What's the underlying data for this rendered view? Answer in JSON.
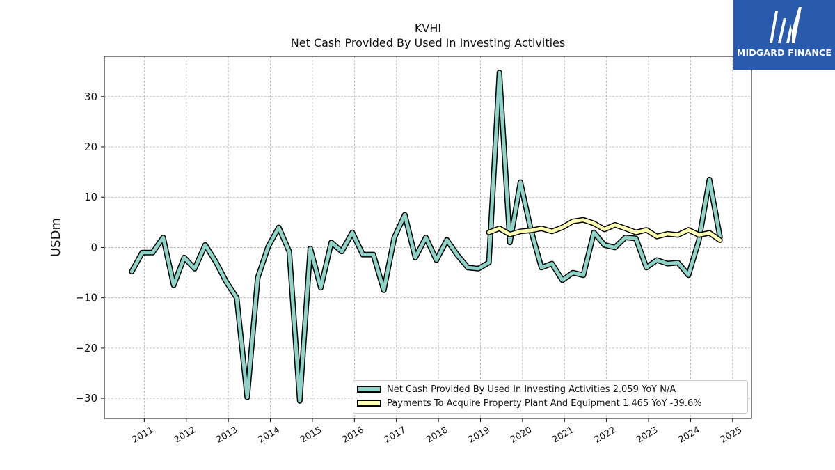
{
  "logo": {
    "text": "MIDGARD FINANCE",
    "icon": "midgard-logo-icon",
    "background": "#2a5aab"
  },
  "chart_data": {
    "type": "line",
    "title": "KVHI",
    "subtitle": "Net Cash Provided By Used In Investing Activities",
    "xlabel": "",
    "ylabel": "USDm",
    "xlim": [
      2010.05,
      2025.45
    ],
    "ylim": [
      -34,
      38
    ],
    "x_ticks": [
      "2011",
      "2012",
      "2013",
      "2014",
      "2015",
      "2016",
      "2017",
      "2018",
      "2019",
      "2020",
      "2021",
      "2022",
      "2023",
      "2024",
      "2025"
    ],
    "y_ticks": [
      -30,
      -20,
      -10,
      0,
      10,
      20,
      30
    ],
    "grid": true,
    "legend_position": "lower-right",
    "series": [
      {
        "name": "Net Cash Provided By Used In Investing Activities  2.059 YoY N/A",
        "color": "#8dd3c7",
        "points": [
          [
            2010.7,
            -4.8
          ],
          [
            2010.95,
            -1.0
          ],
          [
            2011.2,
            -1.0
          ],
          [
            2011.45,
            2.0
          ],
          [
            2011.7,
            -7.5
          ],
          [
            2011.95,
            -2.0
          ],
          [
            2012.2,
            -4.2
          ],
          [
            2012.45,
            0.5
          ],
          [
            2012.7,
            -2.8
          ],
          [
            2012.95,
            -6.8
          ],
          [
            2013.2,
            -10.0
          ],
          [
            2013.45,
            -29.8
          ],
          [
            2013.7,
            -6.0
          ],
          [
            2013.95,
            0.2
          ],
          [
            2014.2,
            4.0
          ],
          [
            2014.45,
            -0.8
          ],
          [
            2014.7,
            -30.5
          ],
          [
            2014.95,
            -0.2
          ],
          [
            2015.2,
            -8.0
          ],
          [
            2015.45,
            1.0
          ],
          [
            2015.7,
            -0.8
          ],
          [
            2015.95,
            3.0
          ],
          [
            2016.2,
            -1.4
          ],
          [
            2016.45,
            -1.4
          ],
          [
            2016.7,
            -8.5
          ],
          [
            2016.95,
            2.0
          ],
          [
            2017.2,
            6.5
          ],
          [
            2017.45,
            -2.0
          ],
          [
            2017.7,
            2.0
          ],
          [
            2017.95,
            -2.5
          ],
          [
            2018.2,
            1.5
          ],
          [
            2018.45,
            -1.5
          ],
          [
            2018.7,
            -4.0
          ],
          [
            2018.95,
            -4.2
          ],
          [
            2019.2,
            -3.0
          ],
          [
            2019.45,
            34.8
          ],
          [
            2019.7,
            1.0
          ],
          [
            2019.95,
            13.0
          ],
          [
            2020.2,
            3.5
          ],
          [
            2020.45,
            -4.0
          ],
          [
            2020.7,
            -3.2
          ],
          [
            2020.95,
            -6.5
          ],
          [
            2021.2,
            -5.0
          ],
          [
            2021.45,
            -5.5
          ],
          [
            2021.7,
            3.0
          ],
          [
            2021.95,
            0.5
          ],
          [
            2022.2,
            0.0
          ],
          [
            2022.45,
            2.0
          ],
          [
            2022.7,
            1.8
          ],
          [
            2022.95,
            -4.0
          ],
          [
            2023.2,
            -2.5
          ],
          [
            2023.45,
            -3.2
          ],
          [
            2023.7,
            -3.0
          ],
          [
            2023.95,
            -5.5
          ],
          [
            2024.2,
            1.5
          ],
          [
            2024.45,
            13.5
          ],
          [
            2024.7,
            2.059
          ]
        ]
      },
      {
        "name": "Payments To Acquire Property Plant And Equipment  1.465 YoY -39.6%",
        "color": "#ffffb3",
        "points": [
          [
            2019.2,
            3.0
          ],
          [
            2019.45,
            3.8
          ],
          [
            2019.7,
            2.6
          ],
          [
            2019.95,
            3.2
          ],
          [
            2020.2,
            3.4
          ],
          [
            2020.45,
            3.8
          ],
          [
            2020.7,
            3.2
          ],
          [
            2020.95,
            4.0
          ],
          [
            2021.2,
            5.2
          ],
          [
            2021.45,
            5.5
          ],
          [
            2021.7,
            4.8
          ],
          [
            2021.95,
            3.6
          ],
          [
            2022.2,
            4.5
          ],
          [
            2022.45,
            3.8
          ],
          [
            2022.7,
            3.0
          ],
          [
            2022.95,
            3.5
          ],
          [
            2023.2,
            2.2
          ],
          [
            2023.45,
            2.7
          ],
          [
            2023.7,
            2.5
          ],
          [
            2023.95,
            3.5
          ],
          [
            2024.2,
            2.5
          ],
          [
            2024.45,
            2.9
          ],
          [
            2024.7,
            1.465
          ]
        ]
      }
    ]
  }
}
